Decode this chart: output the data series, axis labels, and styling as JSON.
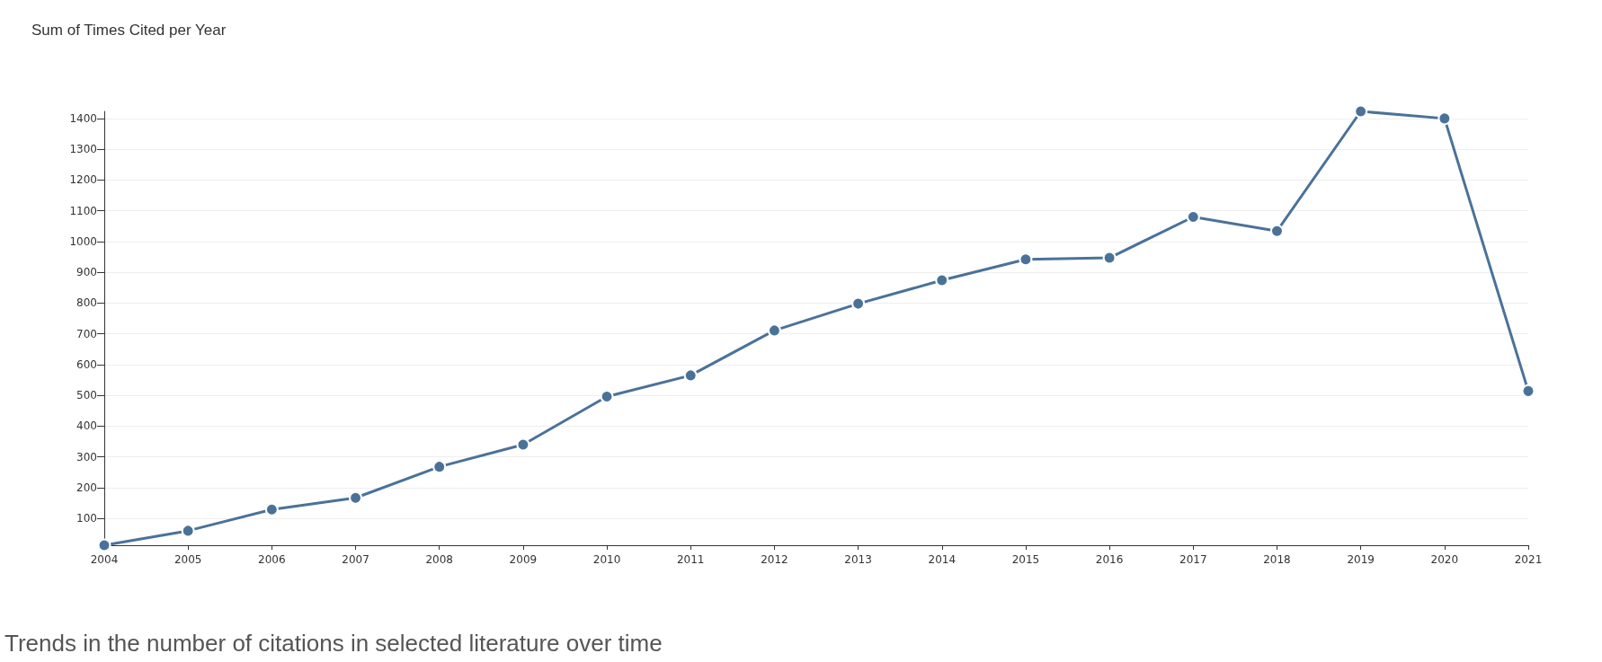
{
  "chart_data": {
    "type": "line",
    "title": "Sum of Times Cited per Year",
    "annotations": [
      "Trends in the number of citations in selected literature over time"
    ],
    "x": [
      2004,
      2005,
      2006,
      2007,
      2008,
      2009,
      2010,
      2011,
      2012,
      2013,
      2014,
      2015,
      2016,
      2017,
      2018,
      2019,
      2020,
      2021
    ],
    "series": [
      {
        "color": "#4a7299",
        "values": [
          13,
          60,
          129,
          167,
          268,
          340,
          496,
          565,
          711,
          798,
          874,
          942,
          947,
          1080,
          1034,
          1423,
          1400,
          514
        ]
      }
    ],
    "xlim": [
      2004,
      2021
    ],
    "xticks": [
      2004,
      2005,
      2006,
      2007,
      2008,
      2009,
      2010,
      2011,
      2012,
      2013,
      2014,
      2015,
      2016,
      2017,
      2018,
      2019,
      2020,
      2021
    ],
    "ylim": [
      13,
      1423
    ],
    "yticks": [
      100,
      200,
      300,
      400,
      500,
      600,
      700,
      800,
      900,
      1000,
      1100,
      1200,
      1300,
      1400
    ],
    "grid": "y",
    "marker": "circle",
    "line_style": "solid"
  }
}
